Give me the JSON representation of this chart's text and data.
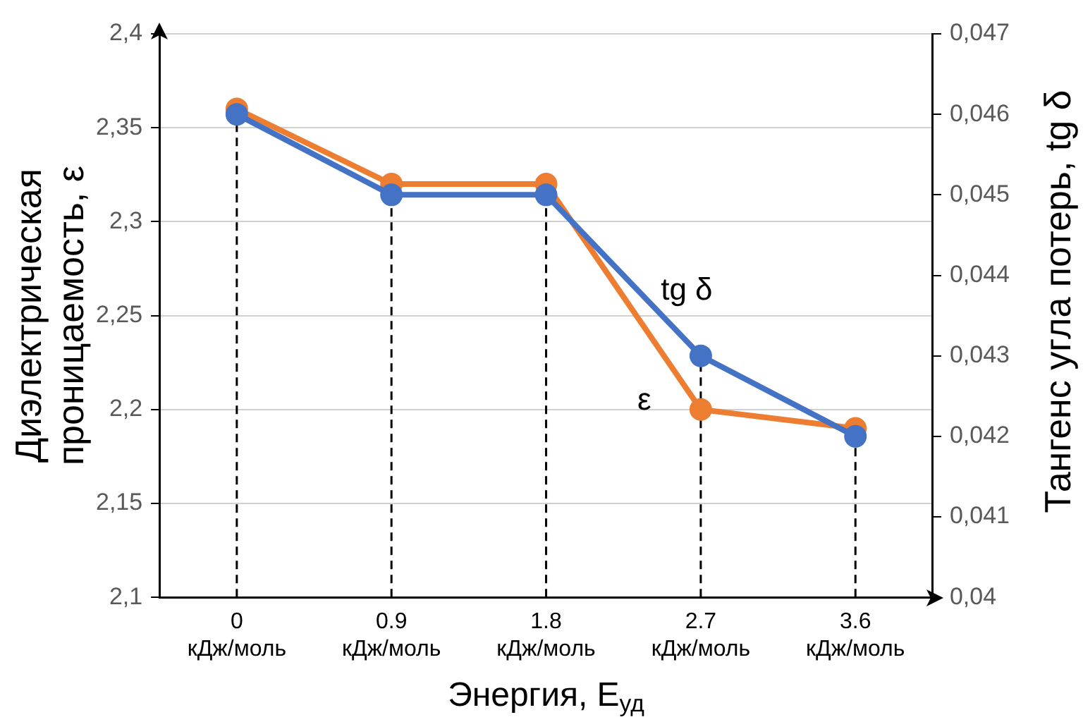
{
  "chart_data": {
    "type": "line",
    "categories": [
      "0\nкДж/моль",
      "0.9\nкДж/моль",
      "1.8\nкДж/моль",
      "2.7\nкДж/моль",
      "3.6\nкДж/моль"
    ],
    "series": [
      {
        "name": "ε",
        "color": "#ed7d31",
        "values": [
          2.36,
          2.32,
          2.32,
          2.2,
          2.19
        ]
      },
      {
        "name": "tg δ",
        "color": "#4472c4",
        "axis": "y2",
        "values": [
          0.046,
          0.045,
          0.045,
          0.043,
          0.042
        ]
      }
    ],
    "xlabel": "Энергия, E$_{уд}$",
    "ylabel": "Диэлектрическая\nпроницаемость, ε",
    "y2label": "Тангенс угла потерь, tg δ",
    "ylim": [
      2.1,
      2.4
    ],
    "yticks": [
      {
        "value": 2.1,
        "label": "2,1"
      },
      {
        "value": 2.15,
        "label": "2,15"
      },
      {
        "value": 2.2,
        "label": "2,2"
      },
      {
        "value": 2.25,
        "label": "2,25"
      },
      {
        "value": 2.3,
        "label": "2,3"
      },
      {
        "value": 2.35,
        "label": "2,35"
      },
      {
        "value": 2.4,
        "label": "2,4"
      }
    ],
    "y2lim": [
      0.04,
      0.047
    ],
    "y2ticks": [
      {
        "value": 0.04,
        "label": "0,04"
      },
      {
        "value": 0.041,
        "label": "0,041"
      },
      {
        "value": 0.042,
        "label": "0,042"
      },
      {
        "value": 0.043,
        "label": "0,043"
      },
      {
        "value": 0.044,
        "label": "0,044"
      },
      {
        "value": 0.045,
        "label": "0,045"
      },
      {
        "value": 0.046,
        "label": "0,046"
      },
      {
        "value": 0.047,
        "label": "0,047"
      }
    ],
    "ref_lines": [
      {
        "axis": "x",
        "value": "0\nкДж/моль",
        "color": "#000000",
        "line_style": "dashed"
      },
      {
        "axis": "x",
        "value": "0.9\nкДж/моль",
        "color": "#000000",
        "line_style": "dashed"
      },
      {
        "axis": "x",
        "value": "1.8\nкДж/моль",
        "color": "#000000",
        "line_style": "dashed"
      },
      {
        "axis": "x",
        "value": "2.7\nкДж/моль",
        "color": "#000000",
        "line_style": "dashed"
      },
      {
        "axis": "x",
        "value": "3.6\nкДж/моль",
        "color": "#000000",
        "line_style": "dashed"
      }
    ],
    "grid": "y",
    "legend": false,
    "marker": "circle",
    "line_style": "solid"
  }
}
